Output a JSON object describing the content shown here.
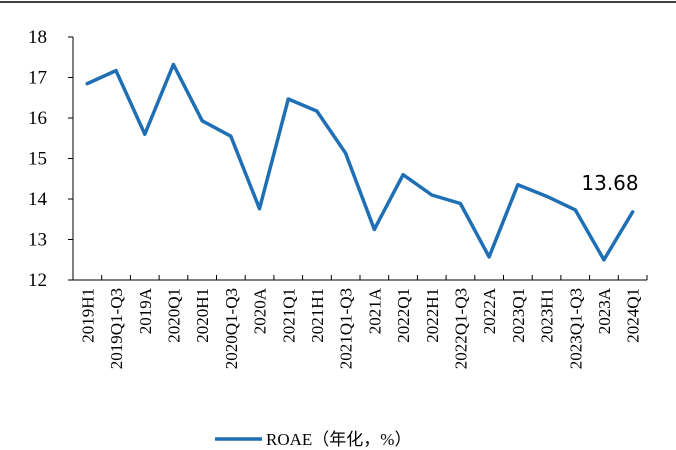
{
  "chart_data": {
    "type": "line",
    "title": "",
    "xlabel": "",
    "ylabel": "",
    "ylim": [
      12,
      18
    ],
    "yticks": [
      12,
      13,
      14,
      15,
      16,
      17,
      18
    ],
    "grid": false,
    "legend_position": "bottom",
    "categories": [
      "2019H1",
      "2019Q1-Q3",
      "2019A",
      "2020Q1",
      "2020H1",
      "2020Q1-Q3",
      "2020A",
      "2021Q1",
      "2021H1",
      "2021Q1-Q3",
      "2021A",
      "2022Q1",
      "2022H1",
      "2022Q1-Q3",
      "2022A",
      "2023Q1",
      "2023H1",
      "2023Q1-Q3",
      "2023A",
      "2024Q1"
    ],
    "series": [
      {
        "name": "ROAE（年化，%）",
        "color": "#1f6fb4",
        "values": [
          16.85,
          17.17,
          15.6,
          17.32,
          15.93,
          15.55,
          13.76,
          16.47,
          16.17,
          15.13,
          13.25,
          14.6,
          14.1,
          13.89,
          12.57,
          14.35,
          14.07,
          13.73,
          12.5,
          13.68
        ]
      }
    ],
    "annotations": [
      {
        "category": "2024Q1",
        "text": "13.68"
      }
    ]
  }
}
